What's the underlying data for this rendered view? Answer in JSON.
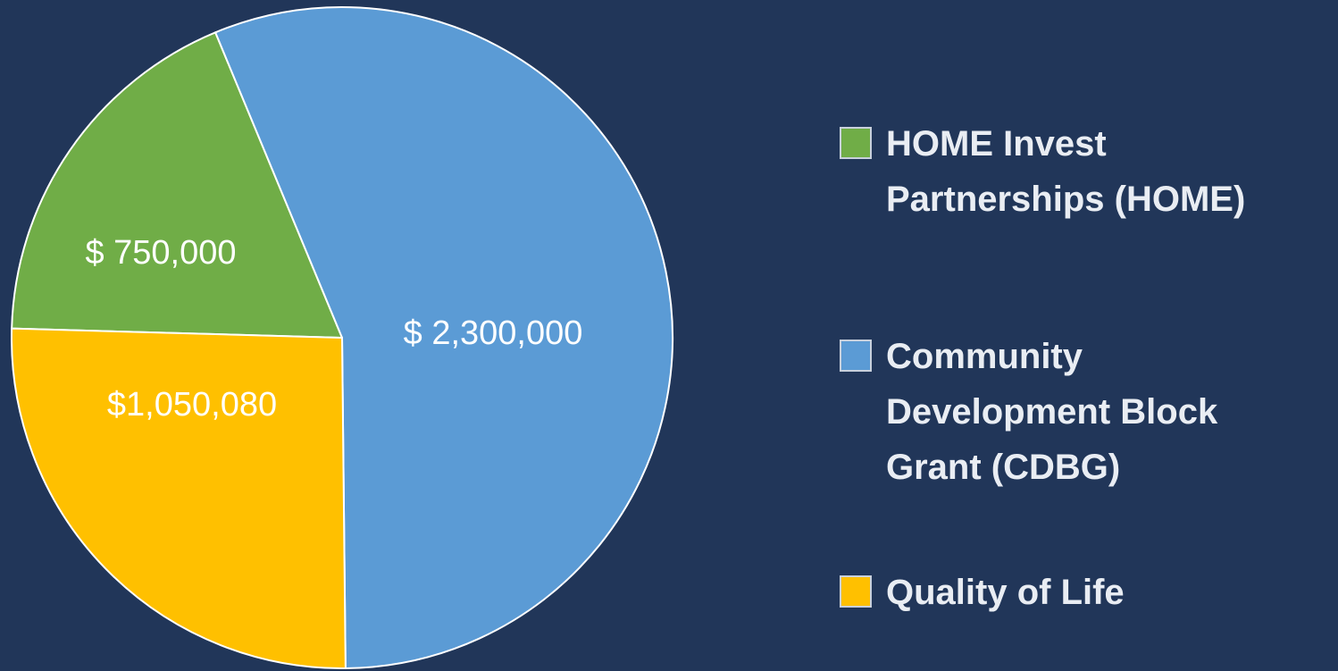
{
  "chart_data": {
    "type": "pie",
    "categories": [
      "HOME Invest Partnerships (HOME)",
      "Community Development Block Grant (CDBG)",
      "Quality of Life"
    ],
    "values": [
      750000,
      2300000,
      1050080
    ],
    "value_labels": [
      "$ 750,000",
      "$ 2,300,000",
      "$1,050,080"
    ],
    "colors": [
      "#70ad47",
      "#5b9bd5",
      "#ffc000"
    ]
  }
}
